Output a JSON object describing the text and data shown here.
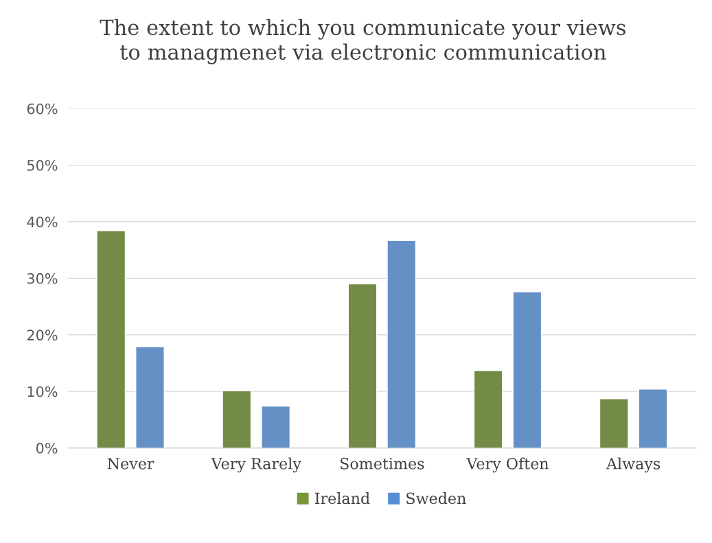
{
  "chart_data": {
    "type": "bar",
    "title": "The extent to which you communicate your views\nto managmenet via electronic communication",
    "categories": [
      "Never",
      "Very Rarely",
      "Sometimes",
      "Very Often",
      "Always"
    ],
    "series": [
      {
        "name": "Ireland",
        "color": "#77963b",
        "values": [
          38.4,
          10.1,
          29.0,
          13.7,
          8.7
        ]
      },
      {
        "name": "Sweden",
        "color": "#558ed5",
        "values": [
          17.9,
          7.4,
          36.7,
          27.6,
          10.4
        ]
      }
    ],
    "ylim": [
      0,
      60
    ],
    "yticks": [
      {
        "value": 0,
        "label": "0%"
      },
      {
        "value": 10,
        "label": "10%"
      },
      {
        "value": 20,
        "label": "20%"
      },
      {
        "value": 30,
        "label": "30%"
      },
      {
        "value": 40,
        "label": "40%"
      },
      {
        "value": 50,
        "label": "50%"
      },
      {
        "value": 60,
        "label": "60%"
      }
    ],
    "grid": "y",
    "legend": "bottom"
  }
}
